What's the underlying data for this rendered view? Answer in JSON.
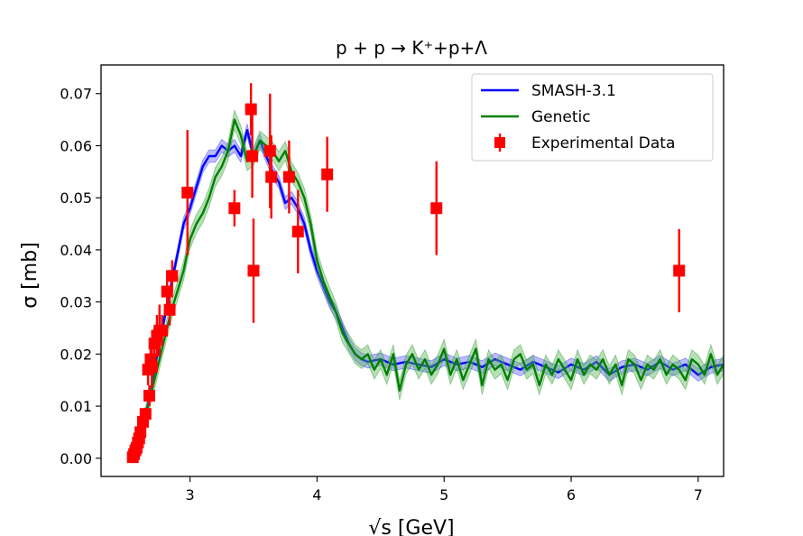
{
  "chart_data": {
    "type": "line",
    "title": "p + p → K⁺+p+Λ",
    "xlabel": "√s [GeV]",
    "ylabel": "σ [mb]",
    "xlim": [
      2.3,
      7.2
    ],
    "ylim": [
      -0.0035,
      0.0755
    ],
    "xticks": [
      3,
      4,
      5,
      6,
      7
    ],
    "xtick_labels": [
      "3",
      "4",
      "5",
      "6",
      "7"
    ],
    "yticks": [
      0.0,
      0.01,
      0.02,
      0.03,
      0.04,
      0.05,
      0.06,
      0.07
    ],
    "ytick_labels": [
      "0.00",
      "0.01",
      "0.02",
      "0.03",
      "0.04",
      "0.05",
      "0.06",
      "0.07"
    ],
    "legend_position": "top-right",
    "series": [
      {
        "name": "SMASH-3.1",
        "kind": "line-band",
        "color": "#0000ff",
        "band_color": "#6a6aff",
        "band_halfwidth": 0.0012,
        "x": [
          2.55,
          2.6,
          2.65,
          2.7,
          2.75,
          2.8,
          2.85,
          2.9,
          2.95,
          3.0,
          3.05,
          3.1,
          3.15,
          3.2,
          3.25,
          3.3,
          3.35,
          3.4,
          3.45,
          3.5,
          3.55,
          3.6,
          3.65,
          3.7,
          3.75,
          3.8,
          3.85,
          3.9,
          3.95,
          4.0,
          4.05,
          4.1,
          4.15,
          4.2,
          4.25,
          4.3,
          4.35,
          4.4,
          4.5,
          4.6,
          4.7,
          4.8,
          4.9,
          5.0,
          5.1,
          5.2,
          5.3,
          5.4,
          5.5,
          5.6,
          5.7,
          5.8,
          5.9,
          6.0,
          6.1,
          6.2,
          6.3,
          6.4,
          6.5,
          6.6,
          6.7,
          6.8,
          6.9,
          7.0,
          7.1,
          7.2
        ],
        "y": [
          0.001,
          0.004,
          0.008,
          0.014,
          0.021,
          0.027,
          0.033,
          0.039,
          0.045,
          0.048,
          0.052,
          0.056,
          0.058,
          0.058,
          0.06,
          0.059,
          0.06,
          0.058,
          0.063,
          0.058,
          0.061,
          0.058,
          0.055,
          0.053,
          0.049,
          0.05,
          0.048,
          0.045,
          0.04,
          0.036,
          0.033,
          0.03,
          0.028,
          0.025,
          0.022,
          0.02,
          0.019,
          0.0185,
          0.019,
          0.018,
          0.0185,
          0.018,
          0.0175,
          0.019,
          0.018,
          0.0185,
          0.0175,
          0.019,
          0.018,
          0.017,
          0.0185,
          0.0175,
          0.0165,
          0.018,
          0.017,
          0.0185,
          0.016,
          0.0175,
          0.018,
          0.017,
          0.0185,
          0.017,
          0.018,
          0.016,
          0.0175,
          0.018
        ]
      },
      {
        "name": "Genetic",
        "kind": "line-band",
        "color": "#008000",
        "band_color": "#5cb85c",
        "band_halfwidth": 0.0018,
        "x": [
          2.55,
          2.6,
          2.65,
          2.7,
          2.75,
          2.8,
          2.85,
          2.9,
          2.95,
          3.0,
          3.05,
          3.1,
          3.15,
          3.2,
          3.25,
          3.3,
          3.35,
          3.4,
          3.45,
          3.5,
          3.55,
          3.6,
          3.65,
          3.7,
          3.75,
          3.8,
          3.85,
          3.9,
          3.95,
          4.0,
          4.05,
          4.1,
          4.15,
          4.2,
          4.25,
          4.3,
          4.35,
          4.4,
          4.45,
          4.5,
          4.55,
          4.6,
          4.65,
          4.7,
          4.75,
          4.8,
          4.85,
          4.9,
          4.95,
          5.0,
          5.05,
          5.1,
          5.15,
          5.2,
          5.25,
          5.3,
          5.35,
          5.4,
          5.45,
          5.5,
          5.55,
          5.6,
          5.65,
          5.7,
          5.75,
          5.8,
          5.85,
          5.9,
          5.95,
          6.0,
          6.05,
          6.1,
          6.15,
          6.2,
          6.25,
          6.3,
          6.35,
          6.4,
          6.45,
          6.5,
          6.55,
          6.6,
          6.65,
          6.7,
          6.75,
          6.8,
          6.85,
          6.9,
          6.95,
          7.0,
          7.05,
          7.1,
          7.15,
          7.2
        ],
        "y": [
          0.001,
          0.004,
          0.008,
          0.013,
          0.018,
          0.023,
          0.028,
          0.032,
          0.036,
          0.042,
          0.045,
          0.047,
          0.05,
          0.054,
          0.056,
          0.059,
          0.065,
          0.062,
          0.057,
          0.058,
          0.061,
          0.06,
          0.059,
          0.057,
          0.059,
          0.055,
          0.053,
          0.05,
          0.045,
          0.038,
          0.034,
          0.031,
          0.028,
          0.024,
          0.022,
          0.02,
          0.019,
          0.02,
          0.017,
          0.019,
          0.016,
          0.02,
          0.013,
          0.018,
          0.02,
          0.017,
          0.019,
          0.016,
          0.018,
          0.021,
          0.016,
          0.019,
          0.015,
          0.018,
          0.021,
          0.014,
          0.019,
          0.017,
          0.018,
          0.015,
          0.019,
          0.02,
          0.017,
          0.018,
          0.014,
          0.018,
          0.016,
          0.019,
          0.017,
          0.015,
          0.019,
          0.016,
          0.018,
          0.017,
          0.019,
          0.016,
          0.018,
          0.014,
          0.019,
          0.018,
          0.015,
          0.018,
          0.017,
          0.019,
          0.016,
          0.018,
          0.017,
          0.015,
          0.019,
          0.018,
          0.016,
          0.02,
          0.016,
          0.018
        ]
      },
      {
        "name": "Experimental Data",
        "kind": "errorbar",
        "color": "#ff0000",
        "x": [
          2.55,
          2.56,
          2.57,
          2.58,
          2.59,
          2.6,
          2.61,
          2.63,
          2.65,
          2.67,
          2.68,
          2.69,
          2.7,
          2.72,
          2.74,
          2.76,
          2.78,
          2.82,
          2.84,
          2.86,
          2.98,
          3.35,
          3.48,
          3.49,
          3.5,
          3.63,
          3.64,
          3.78,
          3.85,
          4.08,
          4.94,
          6.85
        ],
        "y": [
          0.0002,
          0.0008,
          0.0015,
          0.002,
          0.003,
          0.0038,
          0.005,
          0.007,
          0.0085,
          0.017,
          0.012,
          0.019,
          0.0175,
          0.022,
          0.0235,
          0.0245,
          0.0245,
          0.032,
          0.0285,
          0.035,
          0.051,
          0.048,
          0.067,
          0.058,
          0.036,
          0.059,
          0.054,
          0.054,
          0.0435,
          0.0545,
          0.048,
          0.036
        ],
        "yerr": [
          0.0003,
          0.0004,
          0.0005,
          0.0005,
          0.0006,
          0.0007,
          0.0008,
          0.001,
          0.0012,
          0.003,
          0.002,
          0.003,
          0.004,
          0.003,
          0.004,
          0.005,
          0.003,
          0.004,
          0.003,
          0.003,
          0.012,
          0.0035,
          0.005,
          0.008,
          0.01,
          0.011,
          0.008,
          0.007,
          0.008,
          0.0072,
          0.009,
          0.008
        ]
      }
    ]
  }
}
